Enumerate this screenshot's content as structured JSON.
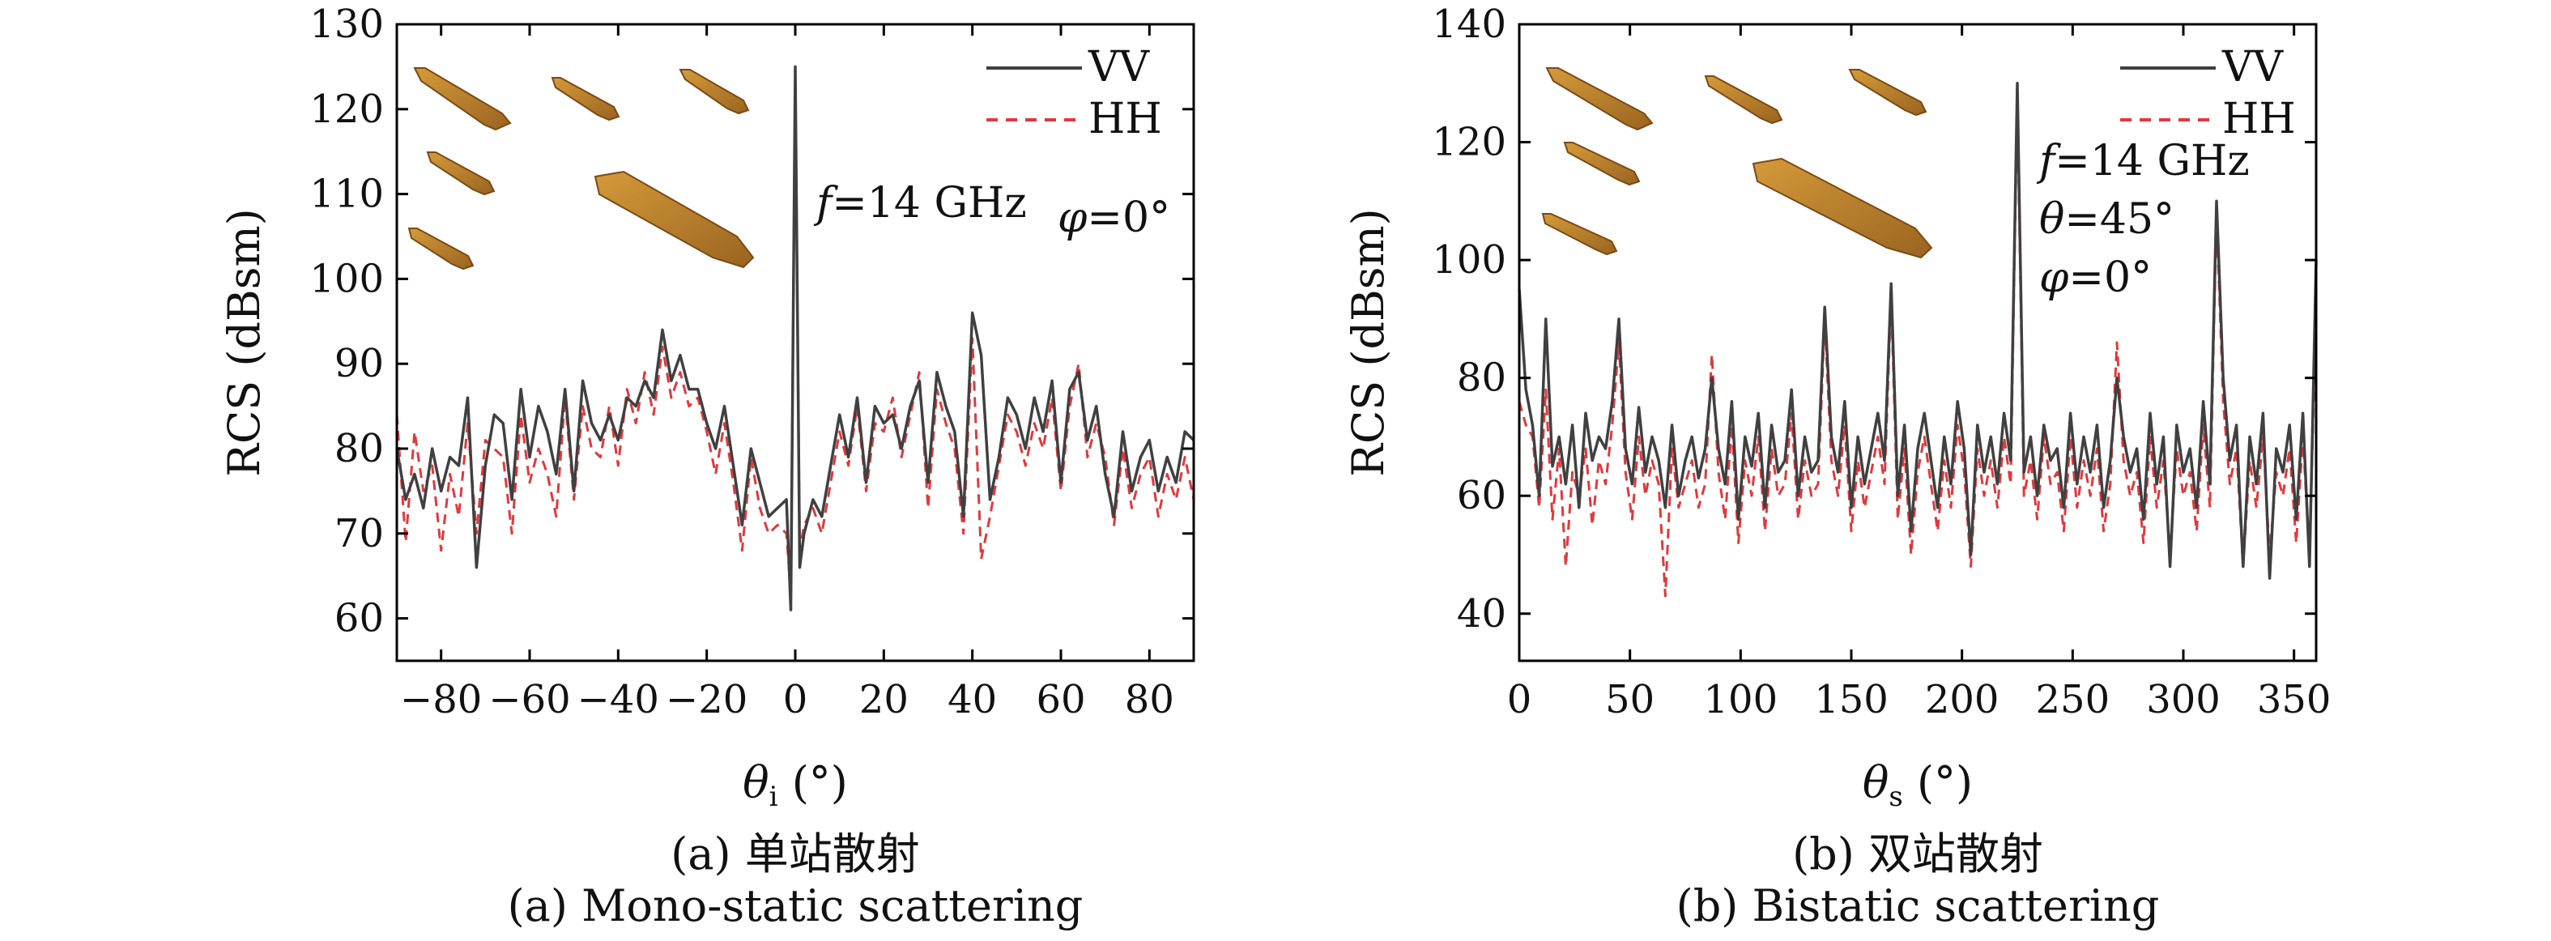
{
  "chart_data": [
    {
      "type": "line",
      "subfigure": "(a)",
      "caption_cn": "(a) 单站散射",
      "caption_en": "(a) Mono-static scattering",
      "xlabel_symbol": "θ",
      "xlabel_sub": "i",
      "xlabel_unit": " (°)",
      "ylabel": "RCS (dBsm)",
      "xlim": [
        -90,
        90
      ],
      "ylim": [
        55,
        130
      ],
      "xticks": [
        -80,
        -60,
        -40,
        -20,
        0,
        20,
        40,
        60,
        80
      ],
      "yticks": [
        60,
        70,
        80,
        90,
        100,
        110,
        120,
        130
      ],
      "grid": false,
      "legend_position": "top-right",
      "annotations": [
        {
          "italic": "f",
          "text": "=14 GHz"
        },
        {
          "italic": "φ",
          "text": "=0°"
        }
      ],
      "x": [
        -90,
        -88,
        -86,
        -84,
        -82,
        -80,
        -78,
        -76,
        -74,
        -72,
        -70,
        -68,
        -66,
        -64,
        -62,
        -60,
        -58,
        -56,
        -54,
        -52,
        -50,
        -48,
        -46,
        -44,
        -42,
        -40,
        -38,
        -36,
        -34,
        -32,
        -30,
        -28,
        -26,
        -24,
        -22,
        -20,
        -18,
        -16,
        -14,
        -12,
        -10,
        -8,
        -6,
        -4,
        -2,
        -1,
        0,
        1,
        2,
        4,
        6,
        8,
        10,
        12,
        14,
        16,
        18,
        20,
        22,
        24,
        26,
        28,
        30,
        32,
        34,
        36,
        38,
        40,
        42,
        44,
        46,
        48,
        50,
        52,
        54,
        56,
        58,
        60,
        62,
        64,
        66,
        68,
        70,
        72,
        74,
        76,
        78,
        80,
        82,
        84,
        86,
        88,
        90
      ],
      "series": [
        {
          "name": "VV",
          "color": "#404040",
          "dash": "solid",
          "values": [
            80,
            74,
            77,
            73,
            80,
            75,
            79,
            78,
            86,
            66,
            78,
            84,
            83,
            74,
            87,
            79,
            85,
            82,
            77,
            87,
            75,
            88,
            83,
            81,
            84,
            81,
            86,
            85,
            88,
            86,
            94,
            88,
            91,
            87,
            87,
            83,
            80,
            85,
            78,
            71,
            80,
            76,
            72,
            73,
            74,
            61,
            125,
            66,
            70,
            74,
            72,
            78,
            84,
            79,
            86,
            76,
            85,
            83,
            84,
            80,
            85,
            88,
            76,
            89,
            85,
            82,
            72,
            96,
            91,
            74,
            79,
            86,
            84,
            80,
            86,
            82,
            88,
            76,
            87,
            89,
            81,
            85,
            77,
            72,
            82,
            75,
            79,
            81,
            75,
            79,
            76,
            82,
            81
          ]
        },
        {
          "name": "HH",
          "color": "#e0393c",
          "dash": "dashed",
          "values": [
            84,
            69,
            82,
            75,
            78,
            68,
            77,
            72,
            83,
            70,
            81,
            80,
            79,
            70,
            84,
            76,
            80,
            77,
            72,
            86,
            74,
            85,
            80,
            79,
            85,
            78,
            87,
            83,
            89,
            84,
            92,
            86,
            89,
            85,
            86,
            82,
            77,
            83,
            76,
            68,
            79,
            73,
            70,
            71,
            70,
            63,
            124,
            68,
            71,
            73,
            70,
            76,
            82,
            78,
            85,
            75,
            83,
            82,
            86,
            79,
            84,
            89,
            73,
            87,
            83,
            80,
            70,
            93,
            67,
            72,
            78,
            84,
            82,
            78,
            83,
            80,
            86,
            75,
            85,
            90,
            79,
            83,
            79,
            71,
            80,
            73,
            77,
            79,
            72,
            77,
            74,
            79,
            74
          ]
        }
      ]
    },
    {
      "type": "line",
      "subfigure": "(b)",
      "caption_cn": "(b) 双站散射",
      "caption_en": "(b) Bistatic scattering",
      "xlabel_symbol": "θ",
      "xlabel_sub": "s",
      "xlabel_unit": " (°)",
      "ylabel": "RCS (dBsm)",
      "xlim": [
        0,
        360
      ],
      "ylim": [
        32,
        140
      ],
      "xticks": [
        0,
        50,
        100,
        150,
        200,
        250,
        300,
        350
      ],
      "yticks": [
        40,
        60,
        80,
        100,
        120,
        140
      ],
      "grid": false,
      "legend_position": "top-right",
      "annotations": [
        {
          "italic": "f",
          "text": "=14 GHz"
        },
        {
          "italic": "θ",
          "text": "=45°"
        },
        {
          "italic": "φ",
          "text": "=0°"
        }
      ],
      "x": [
        0,
        3,
        6,
        9,
        12,
        15,
        18,
        21,
        24,
        27,
        30,
        33,
        36,
        39,
        42,
        45,
        48,
        51,
        54,
        57,
        60,
        63,
        66,
        69,
        72,
        75,
        78,
        81,
        84,
        87,
        90,
        93,
        96,
        99,
        102,
        105,
        108,
        111,
        114,
        117,
        120,
        123,
        126,
        129,
        132,
        135,
        138,
        141,
        144,
        147,
        150,
        153,
        156,
        159,
        162,
        165,
        168,
        171,
        174,
        177,
        180,
        183,
        186,
        189,
        192,
        195,
        198,
        201,
        204,
        207,
        210,
        213,
        216,
        219,
        222,
        225,
        228,
        231,
        234,
        237,
        240,
        243,
        246,
        249,
        252,
        255,
        258,
        261,
        264,
        267,
        270,
        273,
        276,
        279,
        282,
        285,
        288,
        291,
        294,
        297,
        300,
        303,
        306,
        309,
        312,
        315,
        318,
        321,
        324,
        327,
        330,
        333,
        336,
        339,
        342,
        345,
        348,
        351,
        354,
        357,
        360
      ],
      "series": [
        {
          "name": "VV",
          "color": "#404040",
          "dash": "solid",
          "values": [
            95,
            78,
            72,
            60,
            90,
            65,
            70,
            62,
            72,
            58,
            74,
            66,
            70,
            68,
            76,
            90,
            68,
            62,
            75,
            64,
            70,
            66,
            58,
            72,
            60,
            66,
            70,
            63,
            68,
            80,
            68,
            62,
            76,
            56,
            70,
            65,
            74,
            58,
            72,
            64,
            66,
            78,
            60,
            70,
            64,
            66,
            92,
            70,
            64,
            76,
            58,
            70,
            62,
            68,
            74,
            66,
            96,
            60,
            72,
            54,
            68,
            74,
            66,
            58,
            70,
            62,
            76,
            68,
            50,
            72,
            64,
            70,
            62,
            74,
            66,
            130,
            64,
            70,
            60,
            72,
            66,
            68,
            58,
            74,
            62,
            70,
            64,
            72,
            58,
            66,
            80,
            70,
            64,
            68,
            56,
            74,
            62,
            70,
            48,
            72,
            64,
            68,
            58,
            76,
            62,
            110,
            80,
            66,
            72,
            48,
            70,
            62,
            74,
            46,
            68,
            64,
            72,
            56,
            74,
            48,
            100
          ]
        },
        {
          "name": "HH",
          "color": "#e0393c",
          "dash": "dashed",
          "values": [
            76,
            72,
            70,
            58,
            78,
            56,
            68,
            48,
            64,
            60,
            68,
            55,
            66,
            62,
            72,
            86,
            64,
            56,
            70,
            60,
            66,
            62,
            43,
            68,
            58,
            62,
            66,
            58,
            62,
            84,
            64,
            56,
            72,
            52,
            66,
            60,
            70,
            54,
            68,
            60,
            62,
            74,
            56,
            66,
            60,
            62,
            90,
            66,
            60,
            72,
            54,
            66,
            58,
            64,
            70,
            62,
            94,
            56,
            68,
            50,
            64,
            70,
            62,
            54,
            66,
            58,
            72,
            64,
            48,
            68,
            60,
            66,
            58,
            70,
            62,
            128,
            60,
            66,
            56,
            70,
            62,
            64,
            54,
            70,
            58,
            66,
            60,
            68,
            54,
            62,
            86,
            66,
            60,
            64,
            52,
            70,
            58,
            66,
            50,
            68,
            60,
            64,
            54,
            72,
            58,
            108,
            76,
            62,
            68,
            48,
            66,
            58,
            70,
            50,
            64,
            60,
            68,
            52,
            70,
            50,
            92
          ]
        }
      ]
    }
  ]
}
